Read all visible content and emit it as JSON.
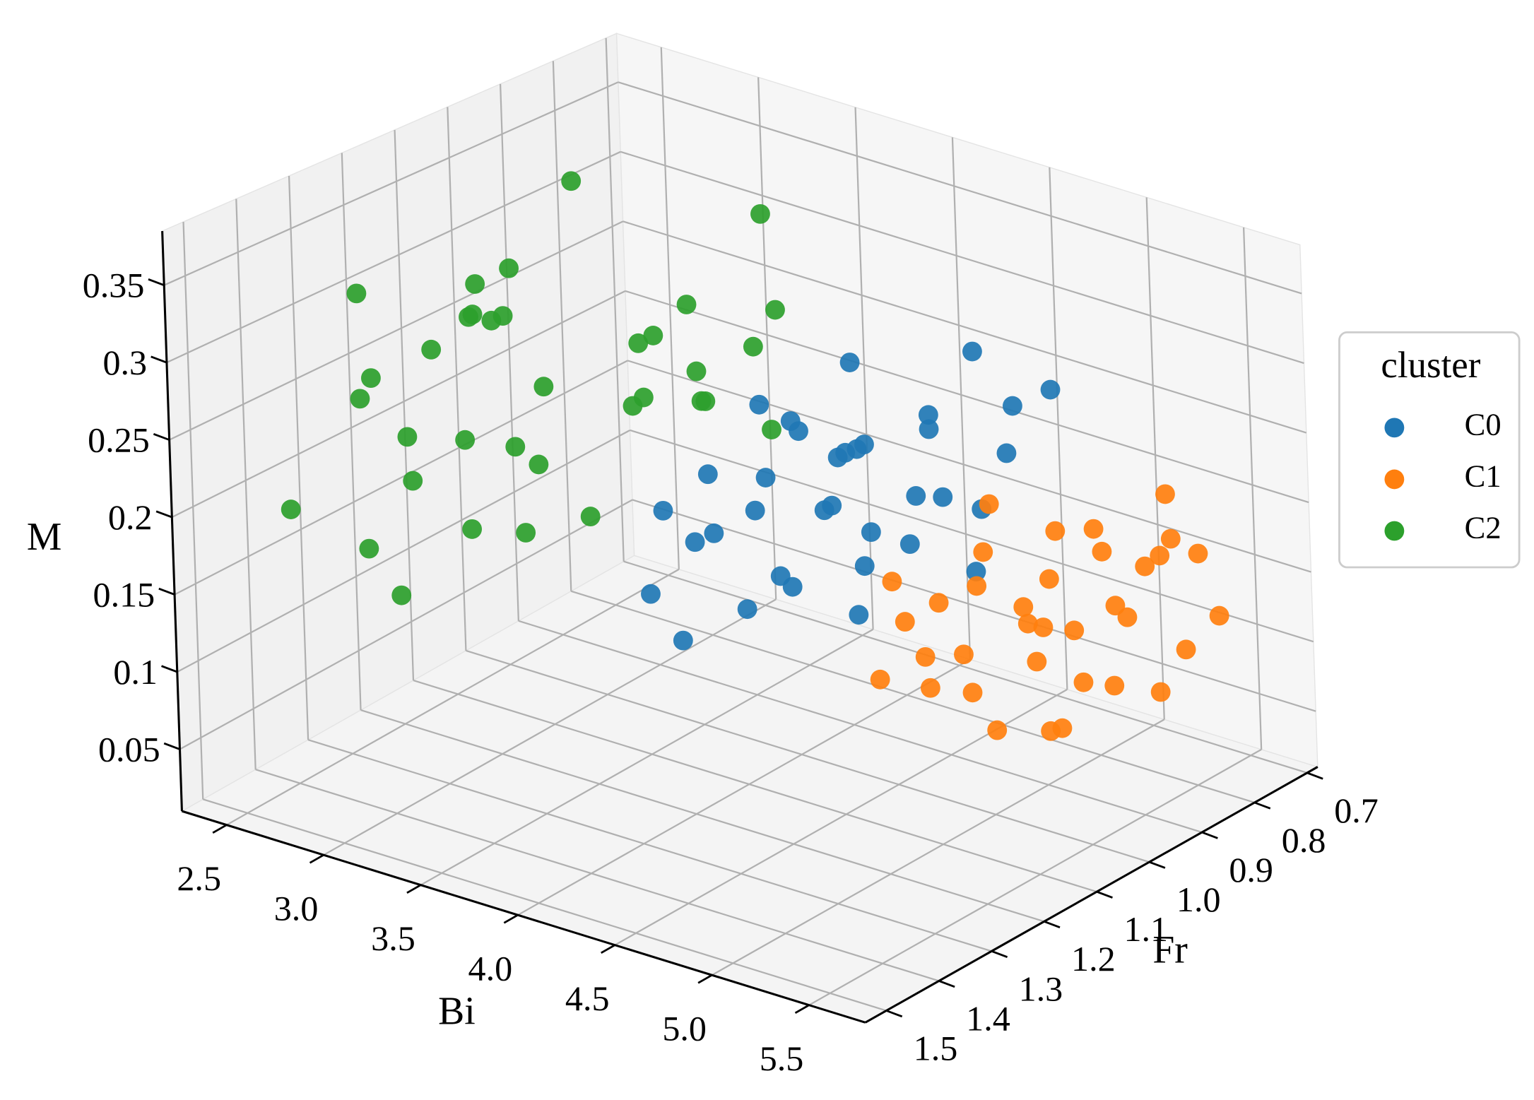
{
  "chart_data": {
    "type": "scatter3d",
    "xlabel": "Bi",
    "ylabel": "Fr",
    "zlabel": "M",
    "xlim": [
      2.27,
      5.79
    ],
    "ylim": [
      0.68,
      1.54
    ],
    "zlim": [
      0.01,
      0.385
    ],
    "xticks": [
      2.5,
      {
        "value": 3,
        "label": "3.0"
      },
      3.5,
      {
        "value": 4,
        "label": "4.0"
      },
      4.5,
      {
        "value": 5,
        "label": "5.0"
      },
      5.5
    ],
    "yticks": [
      0.7,
      0.8,
      0.9,
      {
        "value": 1,
        "label": "1.0"
      },
      1.1,
      1.2,
      1.3,
      1.4,
      1.5
    ],
    "zticks": [
      0.05,
      0.1,
      0.15,
      0.2,
      0.25,
      0.3,
      0.35
    ],
    "grid": true,
    "legend_title": "cluster",
    "legend_position": "right",
    "series": [
      {
        "name": "C0",
        "color": "#1f77b4",
        "x": [
          3.6,
          3.7,
          3.8,
          3.9,
          4.0,
          4.1,
          4.2,
          4.3,
          4.4,
          4.5,
          4.6,
          4.7,
          3.8,
          4.0,
          4.2,
          4.4,
          4.6,
          3.9,
          4.1,
          4.3,
          4.5,
          4.7,
          4.8,
          3.7,
          4.0,
          4.3,
          4.6,
          4.2,
          4.4,
          3.9,
          4.1,
          4.5,
          4.8,
          4.0,
          4.3
        ],
        "y": [
          1.1,
          1.05,
          1.0,
          0.95,
          1.15,
          0.9,
          1.1,
          0.85,
          1.0,
          0.95,
          0.8,
          0.9,
          1.2,
          1.05,
          0.95,
          1.15,
          1.0,
          0.85,
          1.25,
          1.05,
          0.9,
          0.85,
          0.8,
          0.95,
          0.9,
          1.2,
          1.1,
          1.0,
          0.8,
          1.15,
          0.95,
          1.05,
          0.95,
          1.0,
          0.85
        ],
        "z": [
          0.18,
          0.2,
          0.17,
          0.22,
          0.19,
          0.21,
          0.16,
          0.23,
          0.18,
          0.2,
          0.24,
          0.19,
          0.15,
          0.21,
          0.22,
          0.17,
          0.18,
          0.25,
          0.14,
          0.2,
          0.19,
          0.22,
          0.26,
          0.23,
          0.2,
          0.16,
          0.15,
          0.19,
          0.27,
          0.18,
          0.21,
          0.17,
          0.16,
          0.24,
          0.22
        ]
      },
      {
        "name": "C1",
        "color": "#ff7f0e",
        "x": [
          4.5,
          4.6,
          4.7,
          4.8,
          4.9,
          5.0,
          5.1,
          5.2,
          5.3,
          5.4,
          5.5,
          5.6,
          4.7,
          4.9,
          5.1,
          5.3,
          5.5,
          4.8,
          5.0,
          5.2,
          5.4,
          4.6,
          4.9,
          5.1,
          5.3,
          5.5,
          5.0,
          5.2,
          4.8,
          5.4,
          4.7,
          5.6,
          5.1,
          5.3,
          4.9
        ],
        "y": [
          1.0,
          0.95,
          0.9,
          1.05,
          0.85,
          0.8,
          0.95,
          0.75,
          0.85,
          0.8,
          0.75,
          0.9,
          1.1,
          1.0,
          1.15,
          0.95,
          1.05,
          0.8,
          0.9,
          1.0,
          0.85,
          0.85,
          0.75,
          0.8,
          1.1,
          0.95,
          1.05,
          0.9,
          0.95,
          0.75,
          1.05,
          0.85,
          0.7,
          1.0,
          0.9
        ],
        "z": [
          0.15,
          0.13,
          0.16,
          0.12,
          0.14,
          0.17,
          0.11,
          0.15,
          0.13,
          0.18,
          0.12,
          0.1,
          0.11,
          0.09,
          0.13,
          0.14,
          0.1,
          0.16,
          0.12,
          0.15,
          0.17,
          0.18,
          0.14,
          0.12,
          0.1,
          0.11,
          0.13,
          0.09,
          0.15,
          0.16,
          0.14,
          0.12,
          0.18,
          0.08,
          0.13
        ]
      },
      {
        "name": "C2",
        "color": "#2ca02c",
        "x": [
          2.6,
          2.7,
          2.8,
          2.9,
          3.0,
          3.1,
          2.5,
          2.6,
          3.2,
          3.3,
          3.4,
          2.8,
          2.9,
          3.5,
          3.6,
          3.0,
          3.1,
          2.7,
          3.3,
          3.7,
          3.8,
          3.2,
          2.6,
          3.4,
          3.5,
          2.9,
          3.0,
          3.6,
          2.8,
          3.1,
          3.9,
          3.3,
          2.7,
          3.4,
          3.2
        ],
        "y": [
          1.3,
          1.25,
          1.35,
          1.2,
          1.1,
          1.15,
          1.4,
          1.05,
          1.3,
          1.0,
          0.95,
          1.15,
          1.4,
          1.1,
          0.9,
          1.25,
          0.85,
          1.2,
          1.35,
          1.05,
          0.95,
          1.45,
          1.3,
          0.85,
          1.2,
          1.0,
          1.35,
          1.15,
          1.1,
          0.95,
          1.0,
          1.25,
          1.05,
          1.3,
          0.9
        ],
        "z": [
          0.25,
          0.22,
          0.28,
          0.3,
          0.24,
          0.2,
          0.19,
          0.26,
          0.33,
          0.27,
          0.22,
          0.31,
          0.18,
          0.29,
          0.35,
          0.23,
          0.21,
          0.27,
          0.2,
          0.25,
          0.3,
          0.17,
          0.32,
          0.24,
          0.19,
          0.36,
          0.22,
          0.26,
          0.28,
          0.21,
          0.23,
          0.18,
          0.3,
          0.25,
          0.27
        ]
      }
    ]
  }
}
